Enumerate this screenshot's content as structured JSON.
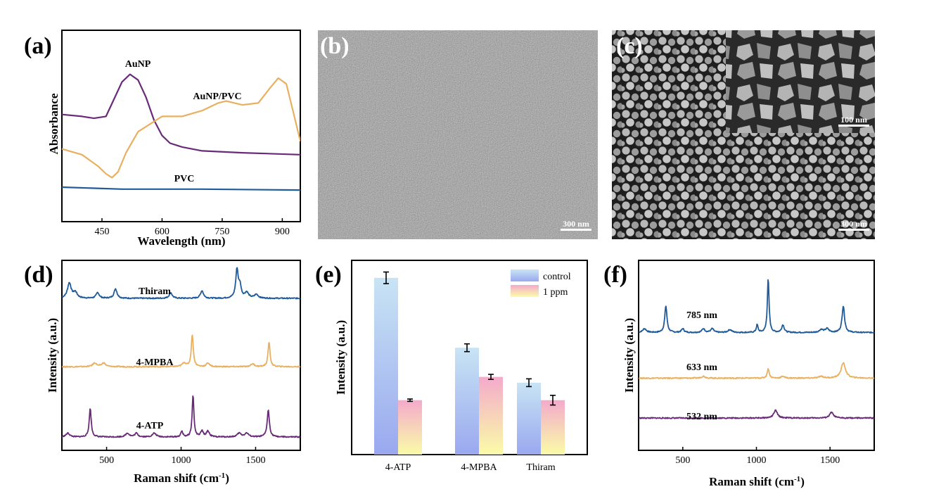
{
  "panels": {
    "a": {
      "letter": "(a)"
    },
    "b": {
      "letter": "(b)",
      "scale": "300 nm"
    },
    "c": {
      "letter": "(c)",
      "scale": "300 nm",
      "inset_scale": "100 nm"
    },
    "d": {
      "letter": "(d)"
    },
    "e": {
      "letter": "(e)"
    },
    "f": {
      "letter": "(f)"
    }
  },
  "colors": {
    "blue": "#1f5a99",
    "orange": "#e8b060",
    "purple": "#6a2a7a"
  },
  "chart_data": [
    {
      "panel": "a",
      "type": "line",
      "xlabel": "Wavelength (nm)",
      "ylabel": "Absorbance",
      "xlim": [
        350,
        945
      ],
      "xticks": [
        450,
        600,
        750,
        900
      ],
      "series": [
        {
          "name": "AuNP",
          "color": "#6a2a7a",
          "x": [
            350,
            400,
            430,
            460,
            480,
            500,
            520,
            540,
            560,
            580,
            600,
            620,
            650,
            700,
            800,
            945
          ],
          "y": [
            0.56,
            0.55,
            0.54,
            0.55,
            0.64,
            0.73,
            0.77,
            0.74,
            0.65,
            0.53,
            0.45,
            0.41,
            0.39,
            0.37,
            0.36,
            0.35
          ]
        },
        {
          "name": "AuNP/PVC",
          "color": "#e8b060",
          "x": [
            350,
            400,
            440,
            460,
            475,
            490,
            510,
            540,
            600,
            650,
            700,
            740,
            760,
            800,
            840,
            870,
            890,
            910,
            930,
            945
          ],
          "y": [
            0.38,
            0.35,
            0.29,
            0.25,
            0.23,
            0.26,
            0.36,
            0.47,
            0.55,
            0.55,
            0.58,
            0.62,
            0.63,
            0.61,
            0.62,
            0.7,
            0.75,
            0.72,
            0.55,
            0.42
          ]
        },
        {
          "name": "PVC",
          "color": "#1f5a99",
          "x": [
            350,
            500,
            700,
            945
          ],
          "y": [
            0.18,
            0.17,
            0.17,
            0.165
          ]
        }
      ]
    },
    {
      "panel": "d",
      "type": "line",
      "xlabel": "Raman shift (cm-1)",
      "ylabel": "Intensity (a.u.)",
      "xlim": [
        200,
        1800
      ],
      "xticks": [
        500,
        1000,
        1500
      ],
      "series": [
        {
          "name": "Thiram",
          "color": "#1f5a99",
          "baseline": 0.8,
          "peaks": [
            [
              250,
              0.08,
              15
            ],
            [
              290,
              0.03,
              15
            ],
            [
              440,
              0.03,
              12
            ],
            [
              560,
              0.05,
              12
            ],
            [
              930,
              0.03,
              12
            ],
            [
              1140,
              0.04,
              12
            ],
            [
              1375,
              0.15,
              10
            ],
            [
              1395,
              0.06,
              10
            ],
            [
              1440,
              0.03,
              15
            ],
            [
              1505,
              0.02,
              15
            ]
          ]
        },
        {
          "name": "4-MPBA",
          "color": "#e8b060",
          "baseline": 0.44,
          "peaks": [
            [
              420,
              0.02,
              15
            ],
            [
              480,
              0.02,
              15
            ],
            [
              1020,
              0.02,
              15
            ],
            [
              1075,
              0.17,
              8
            ],
            [
              1180,
              0.02,
              12
            ],
            [
              1480,
              0.015,
              15
            ],
            [
              1590,
              0.13,
              8
            ]
          ]
        },
        {
          "name": "4-ATP",
          "color": "#6a2a7a",
          "baseline": 0.07,
          "peaks": [
            [
              240,
              0.02,
              15
            ],
            [
              390,
              0.15,
              8
            ],
            [
              640,
              0.02,
              15
            ],
            [
              700,
              0.02,
              12
            ],
            [
              820,
              0.02,
              15
            ],
            [
              1005,
              0.03,
              8
            ],
            [
              1080,
              0.22,
              7
            ],
            [
              1140,
              0.03,
              10
            ],
            [
              1180,
              0.03,
              12
            ],
            [
              1390,
              0.02,
              15
            ],
            [
              1440,
              0.02,
              15
            ],
            [
              1585,
              0.14,
              9
            ]
          ]
        }
      ]
    },
    {
      "panel": "e",
      "type": "bar",
      "xlabel": "",
      "ylabel": "Intensity (a.u.)",
      "ylim": [
        0,
        100
      ],
      "categories": [
        "4-ATP",
        "4-MPBA",
        "Thiram"
      ],
      "legend": {
        "position": "top-right"
      },
      "series": [
        {
          "name": "control",
          "values": [
            91,
            55,
            37
          ],
          "errors": [
            3,
            2,
            2
          ],
          "colors": [
            "#c8e4f4",
            "#9aa8ef"
          ]
        },
        {
          "name": "1 ppm",
          "values": [
            28,
            40,
            28
          ],
          "errors": [
            0.6,
            1.3,
            2.5
          ],
          "colors": [
            "#f4aacb",
            "#fafca8"
          ]
        }
      ]
    },
    {
      "panel": "f",
      "type": "line",
      "xlabel": "Raman shift (cm-1)",
      "ylabel": "Intensity (a.u.)",
      "xlim": [
        200,
        1800
      ],
      "xticks": [
        500,
        1000,
        1500
      ],
      "series": [
        {
          "name": "785 nm",
          "color": "#1f5a99",
          "baseline": 0.62,
          "peaks": [
            [
              240,
              0.02,
              15
            ],
            [
              385,
              0.14,
              9
            ],
            [
              500,
              0.02,
              10
            ],
            [
              640,
              0.02,
              12
            ],
            [
              700,
              0.02,
              12
            ],
            [
              820,
              0.015,
              15
            ],
            [
              1005,
              0.04,
              7
            ],
            [
              1080,
              0.28,
              7
            ],
            [
              1180,
              0.04,
              10
            ],
            [
              1440,
              0.015,
              15
            ],
            [
              1480,
              0.02,
              15
            ],
            [
              1590,
              0.14,
              10
            ]
          ]
        },
        {
          "name": "633 nm",
          "color": "#e8b060",
          "baseline": 0.38,
          "peaks": [
            [
              640,
              0.01,
              15
            ],
            [
              1080,
              0.05,
              8
            ],
            [
              1180,
              0.01,
              12
            ],
            [
              1440,
              0.01,
              15
            ],
            [
              1590,
              0.08,
              18
            ]
          ]
        },
        {
          "name": "532 nm",
          "color": "#6a2a7a",
          "baseline": 0.17,
          "peaks": [
            [
              1130,
              0.04,
              15
            ],
            [
              1510,
              0.03,
              15
            ]
          ]
        }
      ]
    }
  ]
}
